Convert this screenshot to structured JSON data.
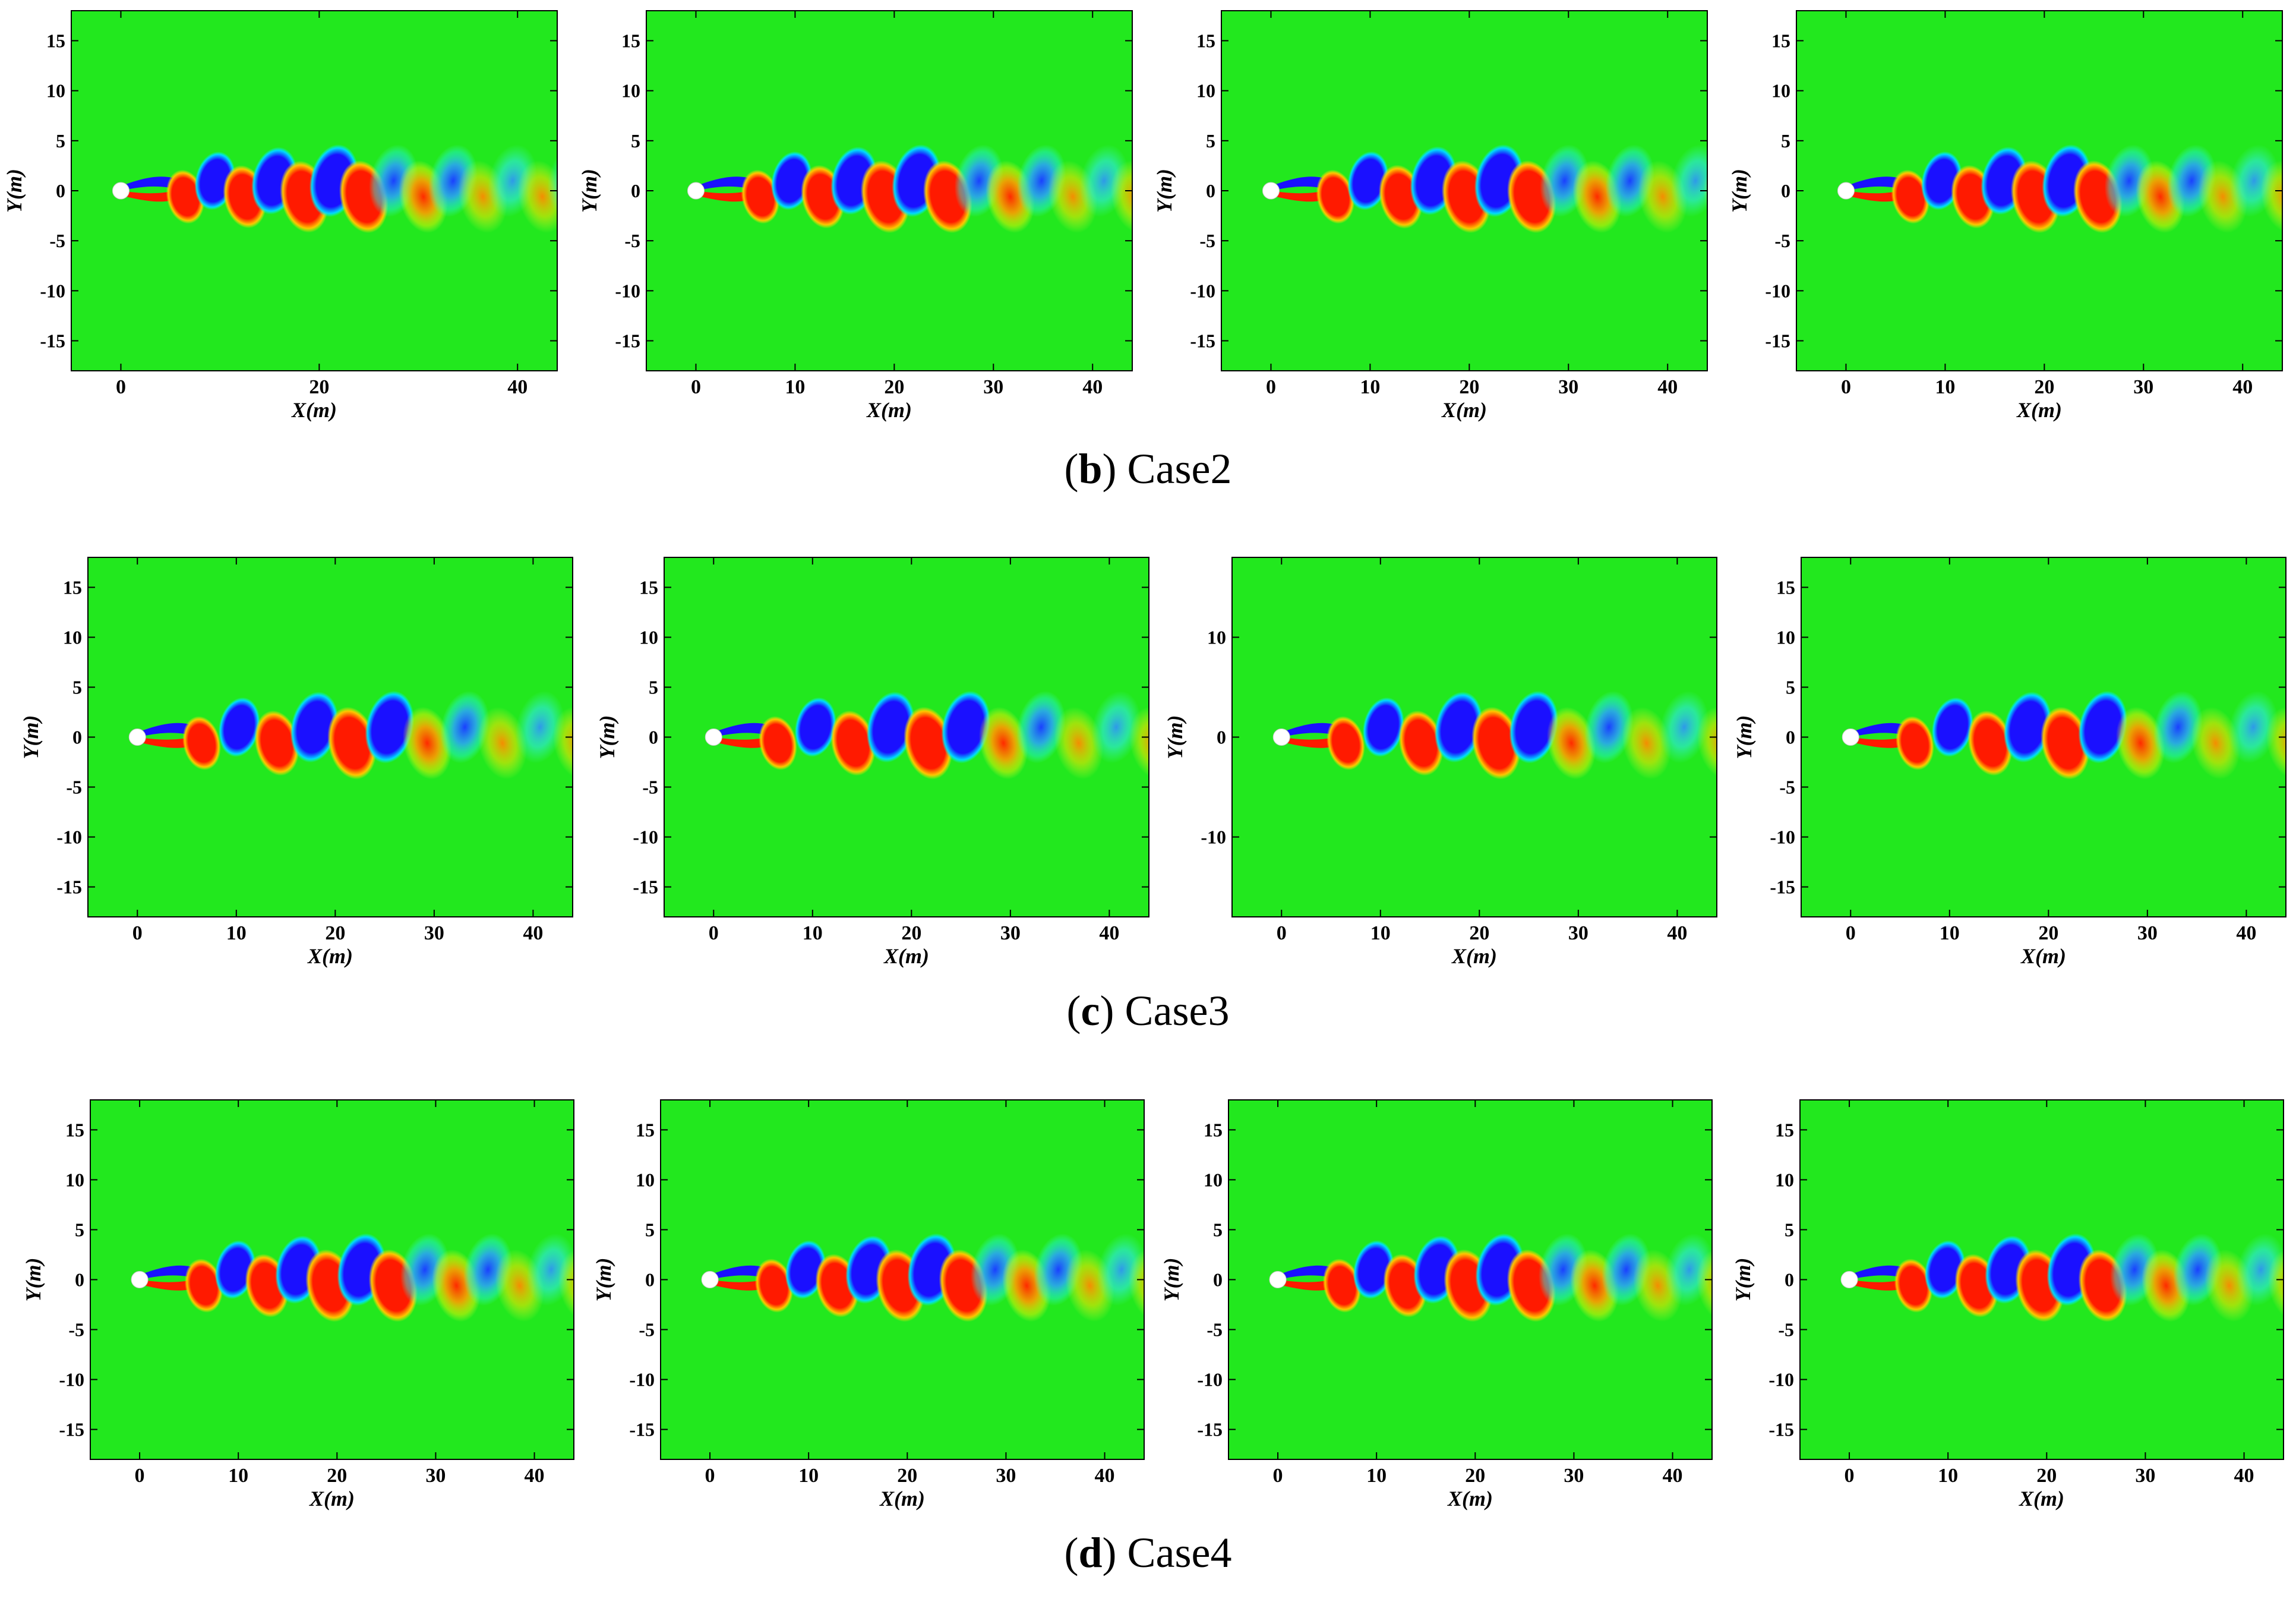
{
  "colors": {
    "background_field": "#22e81e",
    "positive_vortex": "#ff1a00",
    "negative_vortex": "#1a10ff",
    "cylinder": "#ffffff"
  },
  "chart_data": [
    {
      "group": "b",
      "label": "b",
      "title": "Case2",
      "type": "heatmap",
      "panels": [
        {
          "xticks": [
            "0",
            "20",
            "40"
          ],
          "yticks": [
            "15",
            "10",
            "5",
            "0",
            "-5",
            "-10",
            "-15"
          ],
          "xlabel": "X(m)",
          "ylabel": "Y(m)",
          "xlim": [
            -5,
            44
          ],
          "ylim": [
            -18,
            18
          ],
          "vortex_spacing": 6.0
        },
        {
          "xticks": [
            "0",
            "10",
            "20",
            "30",
            "40"
          ],
          "yticks": [
            "15",
            "10",
            "5",
            "0",
            "-5",
            "-10",
            "-15"
          ],
          "xlabel": "X(m)",
          "ylabel": "Y(m)",
          "xlim": [
            -5,
            44
          ],
          "ylim": [
            -18,
            18
          ],
          "vortex_spacing": 6.3
        },
        {
          "xticks": [
            "0",
            "10",
            "20",
            "30",
            "40"
          ],
          "yticks": [
            "15",
            "10",
            "5",
            "0",
            "-5",
            "-10",
            "-15"
          ],
          "xlabel": "X(m)",
          "ylabel": "Y(m)",
          "xlim": [
            -5,
            44
          ],
          "ylim": [
            -18,
            18
          ],
          "vortex_spacing": 6.6
        },
        {
          "xticks": [
            "0",
            "10",
            "20",
            "30",
            "40"
          ],
          "yticks": [
            "15",
            "10",
            "5",
            "0",
            "-5",
            "-10",
            "-15"
          ],
          "xlabel": "X(m)",
          "ylabel": "Y(m)",
          "xlim": [
            -5,
            44
          ],
          "ylim": [
            -18,
            18
          ],
          "vortex_spacing": 6.3
        }
      ]
    },
    {
      "group": "c",
      "label": "c",
      "title": "Case3",
      "type": "heatmap",
      "panels": [
        {
          "xticks": [
            "0",
            "10",
            "20",
            "30",
            "40"
          ],
          "yticks": [
            "15",
            "10",
            "5",
            "0",
            "-5",
            "-10",
            "-15"
          ],
          "xlabel": "X(m)",
          "ylabel": "Y(m)",
          "xlim": [
            -5,
            44
          ],
          "ylim": [
            -18,
            18
          ],
          "vortex_spacing": 7.6
        },
        {
          "xticks": [
            "0",
            "10",
            "20",
            "30",
            "40"
          ],
          "yticks": [
            "15",
            "10",
            "5",
            "0",
            "-5",
            "-10",
            "-15"
          ],
          "xlabel": "X(m)",
          "ylabel": "Y(m)",
          "xlim": [
            -5,
            44
          ],
          "ylim": [
            -18,
            18
          ],
          "vortex_spacing": 7.6
        },
        {
          "xticks": [
            "0",
            "10",
            "20",
            "30",
            "40"
          ],
          "yticks": [
            "10",
            "0",
            "-10"
          ],
          "xlabel": "X(m)",
          "ylabel": "Y(m)",
          "xlim": [
            -5,
            44
          ],
          "ylim": [
            -18,
            18
          ],
          "vortex_spacing": 7.6
        },
        {
          "xticks": [
            "0",
            "10",
            "20",
            "30",
            "40"
          ],
          "yticks": [
            "15",
            "10",
            "5",
            "0",
            "-5",
            "-10",
            "-15"
          ],
          "xlabel": "X(m)",
          "ylabel": "Y(m)",
          "xlim": [
            -5,
            44
          ],
          "ylim": [
            -18,
            18
          ],
          "vortex_spacing": 7.6
        }
      ]
    },
    {
      "group": "d",
      "label": "d",
      "title": "Case4",
      "type": "heatmap",
      "panels": [
        {
          "xticks": [
            "0",
            "10",
            "20",
            "30",
            "40"
          ],
          "yticks": [
            "15",
            "10",
            "5",
            "0",
            "-5",
            "-10",
            "-15"
          ],
          "xlabel": "X(m)",
          "ylabel": "Y(m)",
          "xlim": [
            -5,
            44
          ],
          "ylim": [
            -18,
            18
          ],
          "vortex_spacing": 6.4
        },
        {
          "xticks": [
            "0",
            "10",
            "20",
            "30",
            "40"
          ],
          "yticks": [
            "15",
            "10",
            "5",
            "0",
            "-5",
            "-10",
            "-15"
          ],
          "xlabel": "X(m)",
          "ylabel": "Y(m)",
          "xlim": [
            -5,
            44
          ],
          "ylim": [
            -18,
            18
          ],
          "vortex_spacing": 6.4
        },
        {
          "xticks": [
            "0",
            "10",
            "20",
            "30",
            "40"
          ],
          "yticks": [
            "15",
            "10",
            "5",
            "0",
            "-5",
            "-10",
            "-15"
          ],
          "xlabel": "X(m)",
          "ylabel": "Y(m)",
          "xlim": [
            -5,
            44
          ],
          "ylim": [
            -18,
            18
          ],
          "vortex_spacing": 6.4
        },
        {
          "xticks": [
            "0",
            "10",
            "20",
            "30",
            "40"
          ],
          "yticks": [
            "15",
            "10",
            "5",
            "0",
            "-5",
            "-10",
            "-15"
          ],
          "xlabel": "X(m)",
          "ylabel": "Y(m)",
          "xlim": [
            -5,
            44
          ],
          "ylim": [
            -18,
            18
          ],
          "vortex_spacing": 6.4
        }
      ]
    }
  ]
}
